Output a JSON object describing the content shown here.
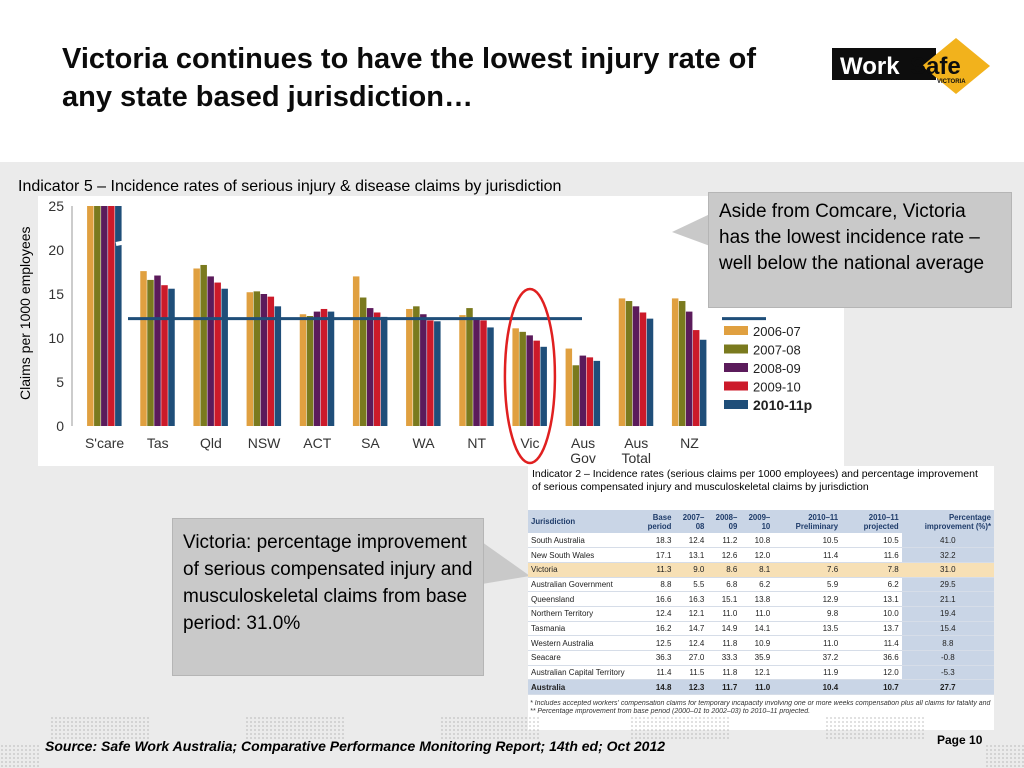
{
  "slide": {
    "title": "Victoria continues to have the lowest injury rate of any state based jurisdiction…",
    "logo": {
      "work": "Work",
      "safe": "Safe",
      "sub": "VICTORIA"
    },
    "indicator5_title": "Indicator 5 – Incidence rates of serious injury & disease claims by jurisdiction",
    "ylabel": "Claims per 1000 employees",
    "callout1": "Aside from Comcare, Victoria has the lowest incidence rate – well below the national average",
    "callout2": "Victoria: percentage improvement of serious compensated injury and musculoskeletal claims from base period: 31.0%",
    "source": "Source: Safe Work Australia; Comparative Performance Monitoring Report; 14th ed; Oct 2012",
    "page": "Page 10"
  },
  "chart_data": {
    "type": "bar",
    "title": "Indicator 5 – Incidence rates of serious injury & disease claims by jurisdiction",
    "ylabel": "Claims per 1000 employees",
    "ylim": [
      0,
      25
    ],
    "yticks": [
      0,
      5,
      10,
      15,
      20,
      25
    ],
    "categories": [
      "S'care",
      "Tas",
      "Qld",
      "NSW",
      "ACT",
      "SA",
      "WA",
      "NT",
      "Vic",
      "Aus\nGov",
      "Aus\nTotal",
      "NZ"
    ],
    "series": [
      {
        "name": "2006-07",
        "color": "#e0a040",
        "values": [
          25,
          17.6,
          17.9,
          15.2,
          12.7,
          17.0,
          13.3,
          12.6,
          11.1,
          8.8,
          14.5,
          14.5
        ]
      },
      {
        "name": "2007-08",
        "color": "#7a7a1e",
        "values": [
          25,
          16.6,
          18.3,
          15.3,
          12.5,
          14.6,
          13.6,
          13.4,
          10.7,
          6.9,
          14.2,
          14.2
        ]
      },
      {
        "name": "2008-09",
        "color": "#5b1b5b",
        "values": [
          25,
          17.1,
          17.0,
          15.0,
          13.0,
          13.4,
          12.7,
          12.2,
          10.3,
          8.0,
          13.6,
          13.0
        ]
      },
      {
        "name": "2009-10",
        "color": "#cc1a2a",
        "values": [
          25,
          16.0,
          16.3,
          14.7,
          13.3,
          12.9,
          12.0,
          12.0,
          9.7,
          7.8,
          12.9,
          10.9
        ]
      },
      {
        "name": "2010-11p",
        "color": "#1f4e79",
        "values": [
          25,
          15.6,
          15.6,
          13.6,
          13.0,
          12.4,
          11.9,
          11.2,
          9.0,
          7.4,
          12.2,
          9.8
        ]
      }
    ],
    "reference_line": 12.2,
    "highlight": "Vic",
    "legend_position": "right",
    "grid": false
  },
  "table": {
    "caption": "Indicator 2 – Incidence rates (serious claims per 1000 employees) and percentage improvement of serious compensated injury and musculoskeletal claims by jurisdiction",
    "headers": [
      "Jurisdiction",
      "Base period",
      "2007–08",
      "2008–09",
      "2009–10",
      "2010–11 Preliminary",
      "2010–11 projected",
      "Percentage improvement (%)*"
    ],
    "rows": [
      [
        "South Australia",
        "18.3",
        "12.4",
        "11.2",
        "10.8",
        "10.5",
        "10.5",
        "41.0"
      ],
      [
        "New South Wales",
        "17.1",
        "13.1",
        "12.6",
        "12.0",
        "11.4",
        "11.6",
        "32.2"
      ],
      [
        "Victoria",
        "11.3",
        "9.0",
        "8.6",
        "8.1",
        "7.6",
        "7.8",
        "31.0"
      ],
      [
        "Australian Government",
        "8.8",
        "5.5",
        "6.8",
        "6.2",
        "5.9",
        "6.2",
        "29.5"
      ],
      [
        "Queensland",
        "16.6",
        "16.3",
        "15.1",
        "13.8",
        "12.9",
        "13.1",
        "21.1"
      ],
      [
        "Northern Territory",
        "12.4",
        "12.1",
        "11.0",
        "11.0",
        "9.8",
        "10.0",
        "19.4"
      ],
      [
        "Tasmania",
        "16.2",
        "14.7",
        "14.9",
        "14.1",
        "13.5",
        "13.7",
        "15.4"
      ],
      [
        "Western Australia",
        "12.5",
        "12.4",
        "11.8",
        "10.9",
        "11.0",
        "11.4",
        "8.8"
      ],
      [
        "Seacare",
        "36.3",
        "27.0",
        "33.3",
        "35.9",
        "37.2",
        "36.6",
        "-0.8"
      ],
      [
        "Australian Capital Territory",
        "11.4",
        "11.5",
        "11.8",
        "12.1",
        "11.9",
        "12.0",
        "-5.3"
      ],
      [
        "Australia",
        "14.8",
        "12.3",
        "11.7",
        "11.0",
        "10.4",
        "10.7",
        "27.7"
      ]
    ],
    "notes": [
      "* Includes accepted workers' compensation claims for temporary incapacity involving one or more weeks compensation plus all claims for fatality and permanent incapacity.",
      "** Percentage improvement from base period (2000–01 to 2002–03) to 2010–11 projected."
    ]
  }
}
